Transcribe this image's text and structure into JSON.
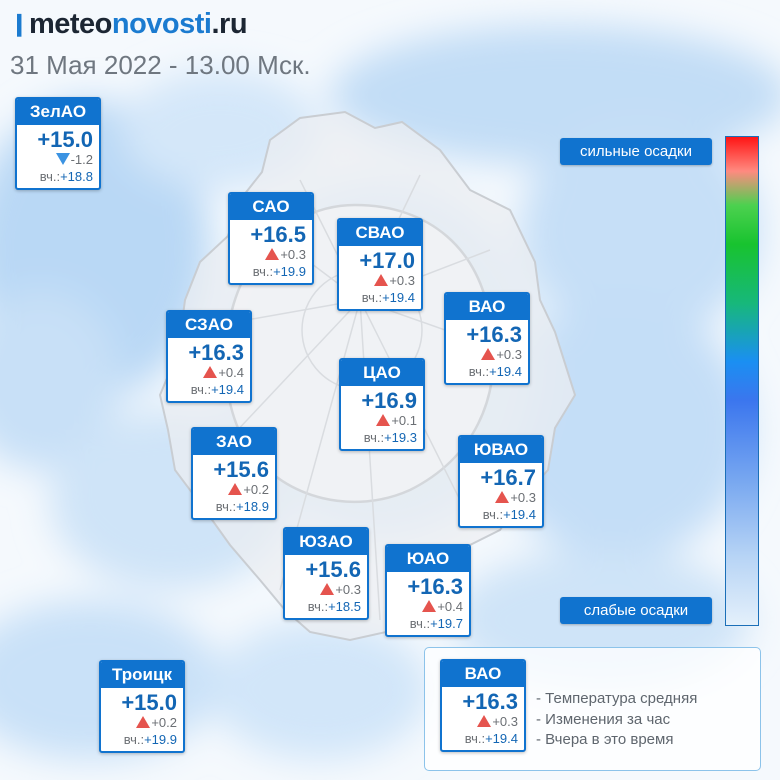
{
  "header": {
    "logo_prefix": "meteo",
    "logo_accent": "novosti",
    "logo_suffix": ".ru",
    "date": "31 Мая 2022 - 13.00 Мск."
  },
  "colors": {
    "card_header": "#1073cf",
    "temp_text": "#1366b4",
    "rise_arrow": "#e5544e",
    "fall_arrow": "#3b93e2"
  },
  "districts": [
    {
      "name": "ЗелАО",
      "temp": "+15.0",
      "trend": "down",
      "delta": "-1.2",
      "yesterday_label": "вч.:",
      "yesterday": "+18.8"
    },
    {
      "name": "САО",
      "temp": "+16.5",
      "trend": "up",
      "delta": "+0.3",
      "yesterday_label": "вч.:",
      "yesterday": "+19.9"
    },
    {
      "name": "СВАО",
      "temp": "+17.0",
      "trend": "up",
      "delta": "+0.3",
      "yesterday_label": "вч.:",
      "yesterday": "+19.4"
    },
    {
      "name": "ВАО",
      "temp": "+16.3",
      "trend": "up",
      "delta": "+0.3",
      "yesterday_label": "вч.:",
      "yesterday": "+19.4"
    },
    {
      "name": "СЗАО",
      "temp": "+16.3",
      "trend": "up",
      "delta": "+0.4",
      "yesterday_label": "вч.:",
      "yesterday": "+19.4"
    },
    {
      "name": "ЦАО",
      "temp": "+16.9",
      "trend": "up",
      "delta": "+0.1",
      "yesterday_label": "вч.:",
      "yesterday": "+19.3"
    },
    {
      "name": "ЗАО",
      "temp": "+15.6",
      "trend": "up",
      "delta": "+0.2",
      "yesterday_label": "вч.:",
      "yesterday": "+18.9"
    },
    {
      "name": "ЮВАО",
      "temp": "+16.7",
      "trend": "up",
      "delta": "+0.3",
      "yesterday_label": "вч.:",
      "yesterday": "+19.4"
    },
    {
      "name": "ЮЗАО",
      "temp": "+15.6",
      "trend": "up",
      "delta": "+0.3",
      "yesterday_label": "вч.:",
      "yesterday": "+18.5"
    },
    {
      "name": "ЮАО",
      "temp": "+16.3",
      "trend": "up",
      "delta": "+0.4",
      "yesterday_label": "вч.:",
      "yesterday": "+19.7"
    },
    {
      "name": "Троицк",
      "temp": "+15.0",
      "trend": "up",
      "delta": "+0.2",
      "yesterday_label": "вч.:",
      "yesterday": "+19.9"
    }
  ],
  "scale": {
    "top_label": "сильные осадки",
    "bottom_label": "слабые осадки"
  },
  "legend": {
    "sample": {
      "name": "ВАО",
      "temp": "+16.3",
      "trend": "up",
      "delta": "+0.3",
      "yesterday_label": "вч.:",
      "yesterday": "+19.4"
    },
    "line1": "- Температура средняя",
    "line2": "- Изменения за час",
    "line3": "- Вчера в это время"
  }
}
